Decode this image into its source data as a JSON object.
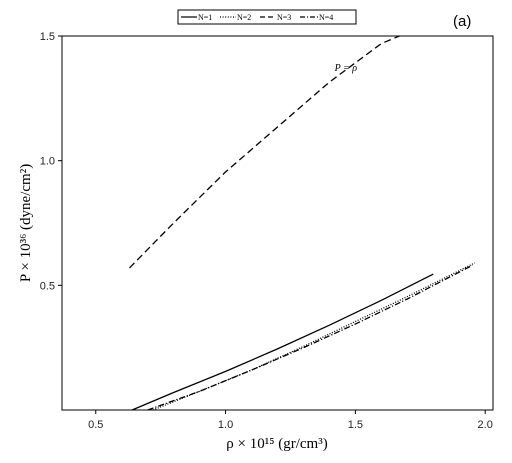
{
  "chart_data": {
    "type": "line",
    "panel_label": "(a)",
    "xlabel": "ρ × 10¹⁵ (gr/cm³)",
    "ylabel": "P × 10³⁶ (dyne/cm²)",
    "xlim": [
      0.37,
      2.03
    ],
    "ylim": [
      0.0,
      1.5
    ],
    "x_ticks": [
      0.5,
      1.0,
      1.5,
      2.0
    ],
    "x_tick_labels": [
      "0.5",
      "1.0",
      "1.5",
      "2.0"
    ],
    "y_ticks": [
      0.5,
      1.0,
      1.5
    ],
    "y_tick_labels": [
      "0.5",
      "1.0",
      "1.5"
    ],
    "grid": false,
    "legend_position": "top-center-outside",
    "annotation": {
      "text": "P = ρ",
      "x": 1.42,
      "y": 1.36
    },
    "series": [
      {
        "name": "N=1",
        "dash": "solid",
        "x": [
          0.64,
          0.8,
          1.0,
          1.2,
          1.4,
          1.6,
          1.8
        ],
        "y": [
          0.0,
          0.07,
          0.155,
          0.245,
          0.34,
          0.44,
          0.545
        ]
      },
      {
        "name": "N=2",
        "dash": "dotted",
        "x": [
          0.72,
          0.9,
          1.1,
          1.3,
          1.5,
          1.7,
          1.96
        ],
        "y": [
          0.0,
          0.075,
          0.16,
          0.255,
          0.355,
          0.455,
          0.59
        ]
      },
      {
        "name": "N=3",
        "dash": "dashed",
        "x": [
          0.63,
          0.8,
          1.0,
          1.2,
          1.4,
          1.6,
          1.67
        ],
        "y": [
          0.57,
          0.75,
          0.955,
          1.135,
          1.315,
          1.47,
          1.5
        ]
      },
      {
        "name": "N=4",
        "dash": "dashdot",
        "x": [
          0.7,
          0.9,
          1.1,
          1.3,
          1.5,
          1.7,
          1.95
        ],
        "y": [
          0.0,
          0.075,
          0.16,
          0.25,
          0.345,
          0.445,
          0.58
        ]
      }
    ]
  }
}
